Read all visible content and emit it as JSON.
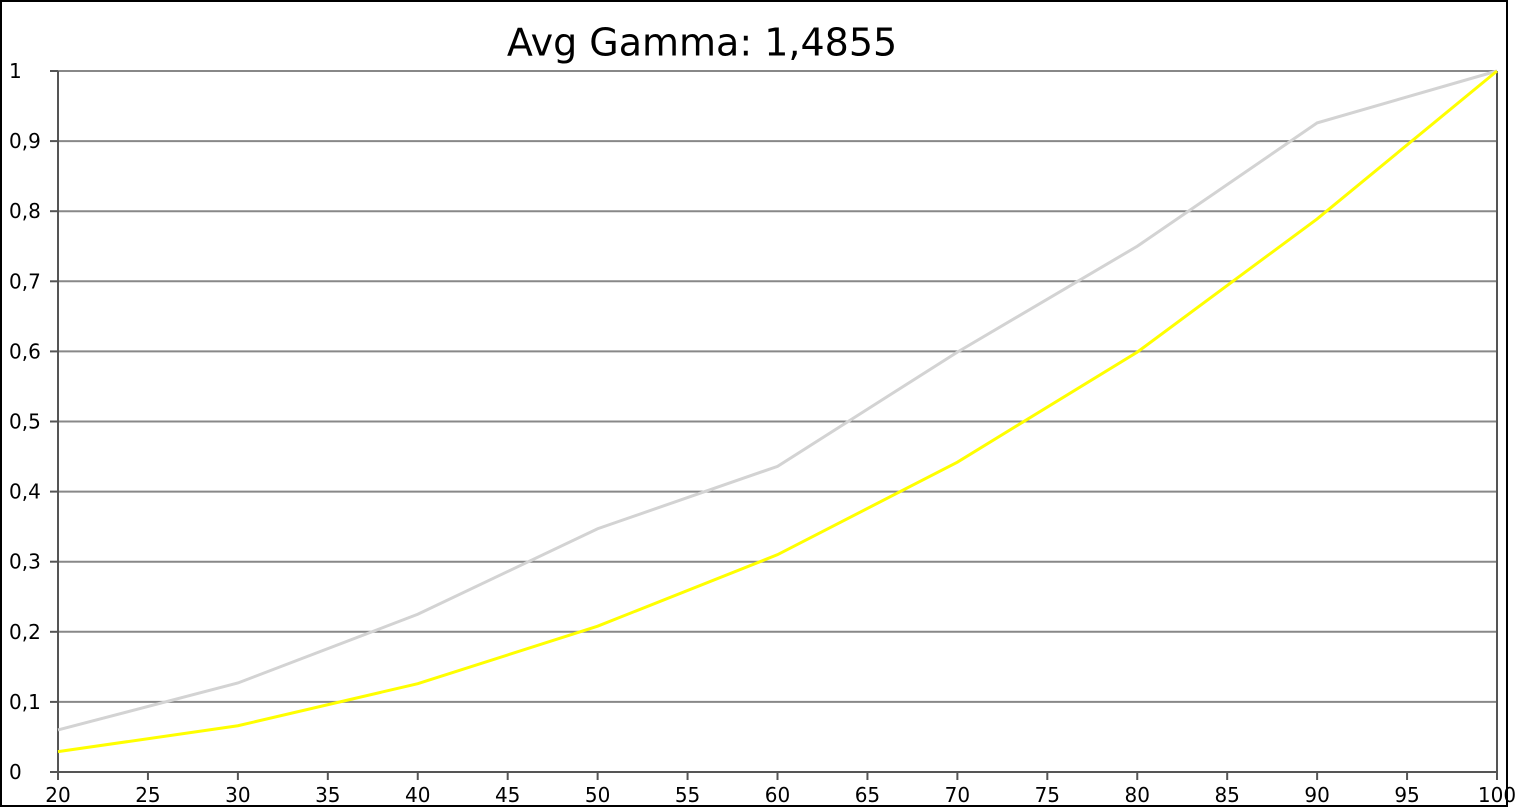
{
  "chart_data": {
    "type": "line",
    "title": "Avg Gamma: 1,4855",
    "x": [
      20,
      30,
      40,
      50,
      60,
      70,
      80,
      90,
      100
    ],
    "series": [
      {
        "color": "#d3d3d3",
        "values": [
          0.06,
          0.127,
          0.225,
          0.347,
          0.436,
          0.599,
          0.75,
          0.926,
          1
        ]
      },
      {
        "color": "#ffff00",
        "values": [
          0.029,
          0.066,
          0.126,
          0.208,
          0.31,
          0.442,
          0.599,
          0.789,
          1
        ]
      }
    ],
    "xlim": [
      20,
      100
    ],
    "xticks": [
      20,
      25,
      30,
      35,
      40,
      45,
      50,
      55,
      60,
      65,
      70,
      75,
      80,
      85,
      90,
      95,
      100
    ],
    "ylim": [
      0,
      1
    ],
    "yticks": [
      0,
      {
        "value": 0.1,
        "label": "0,1"
      },
      {
        "value": 0.2,
        "label": "0,2"
      },
      {
        "value": 0.3,
        "label": "0,3"
      },
      {
        "value": 0.4,
        "label": "0,4"
      },
      {
        "value": 0.5,
        "label": "0,5"
      },
      {
        "value": 0.6,
        "label": "0,6"
      },
      {
        "value": 0.7,
        "label": "0,7"
      },
      {
        "value": 0.8,
        "label": "0,8"
      },
      {
        "value": 0.9,
        "label": "0,9"
      },
      1
    ],
    "grid": true
  }
}
